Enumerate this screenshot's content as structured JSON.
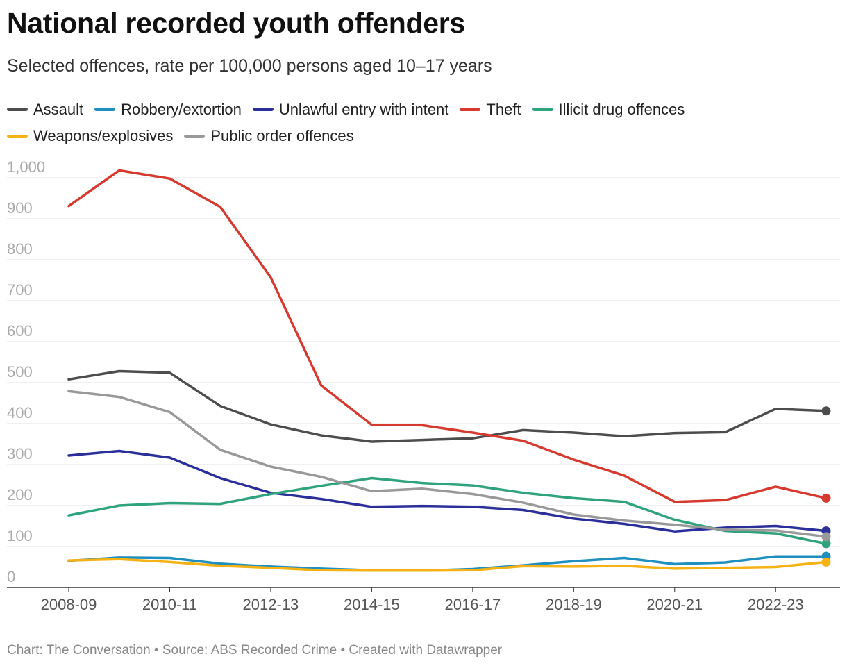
{
  "title": "National recorded youth offenders",
  "subtitle": "Selected offences, rate per 100,000 persons aged 10–17 years",
  "footer": "Chart: The Conversation • Source: ABS Recorded Crime • Created with Datawrapper",
  "chart_data": {
    "type": "line",
    "x": [
      "2008-09",
      "2009-10",
      "2010-11",
      "2011-12",
      "2012-13",
      "2013-14",
      "2014-15",
      "2015-16",
      "2016-17",
      "2017-18",
      "2018-19",
      "2019-20",
      "2020-21",
      "2021-22",
      "2022-23",
      "2023-24"
    ],
    "x_tick_labels": [
      "2008-09",
      "2010-11",
      "2012-13",
      "2014-15",
      "2016-17",
      "2018-19",
      "2020-21",
      "2022-23"
    ],
    "y_ticks": [
      0,
      100,
      200,
      300,
      400,
      500,
      600,
      700,
      800,
      900,
      1000
    ],
    "y_tick_labels": [
      "0",
      "100",
      "200",
      "300",
      "400",
      "500",
      "600",
      "700",
      "800",
      "900",
      "1,000"
    ],
    "ylim": [
      0,
      1000
    ],
    "grid": true,
    "legend_position": "top",
    "series": [
      {
        "name": "Assault",
        "color": "#4d4d4d",
        "values": [
          508,
          528,
          524,
          443,
          398,
          371,
          356,
          360,
          364,
          384,
          378,
          369,
          377,
          379,
          436,
          431
        ]
      },
      {
        "name": "Robbery/extortion",
        "color": "#1f8fc0",
        "values": [
          65,
          73,
          72,
          58,
          51,
          46,
          42,
          41,
          45,
          54,
          64,
          72,
          57,
          61,
          76,
          76
        ]
      },
      {
        "name": "Unlawful entry with intent",
        "color": "#2a2f9a",
        "values": [
          322,
          333,
          317,
          267,
          231,
          216,
          197,
          199,
          197,
          189,
          168,
          155,
          137,
          146,
          150,
          138
        ]
      },
      {
        "name": "Theft",
        "color": "#d63a2f",
        "values": [
          931,
          1018,
          998,
          929,
          757,
          493,
          397,
          396,
          378,
          358,
          312,
          273,
          209,
          213,
          246,
          218
        ]
      },
      {
        "name": "Illicit drug offences",
        "color": "#2ea37c",
        "values": [
          176,
          200,
          206,
          204,
          228,
          248,
          267,
          255,
          249,
          231,
          218,
          209,
          165,
          138,
          132,
          107
        ]
      },
      {
        "name": "Weapons/explosives",
        "color": "#f5b214",
        "values": [
          66,
          69,
          62,
          53,
          48,
          42,
          41,
          41,
          42,
          52,
          51,
          53,
          46,
          48,
          50,
          62
        ]
      },
      {
        "name": "Public order offences",
        "color": "#999999",
        "values": [
          479,
          465,
          428,
          336,
          295,
          270,
          235,
          241,
          228,
          207,
          178,
          163,
          153,
          141,
          139,
          124
        ]
      }
    ]
  }
}
